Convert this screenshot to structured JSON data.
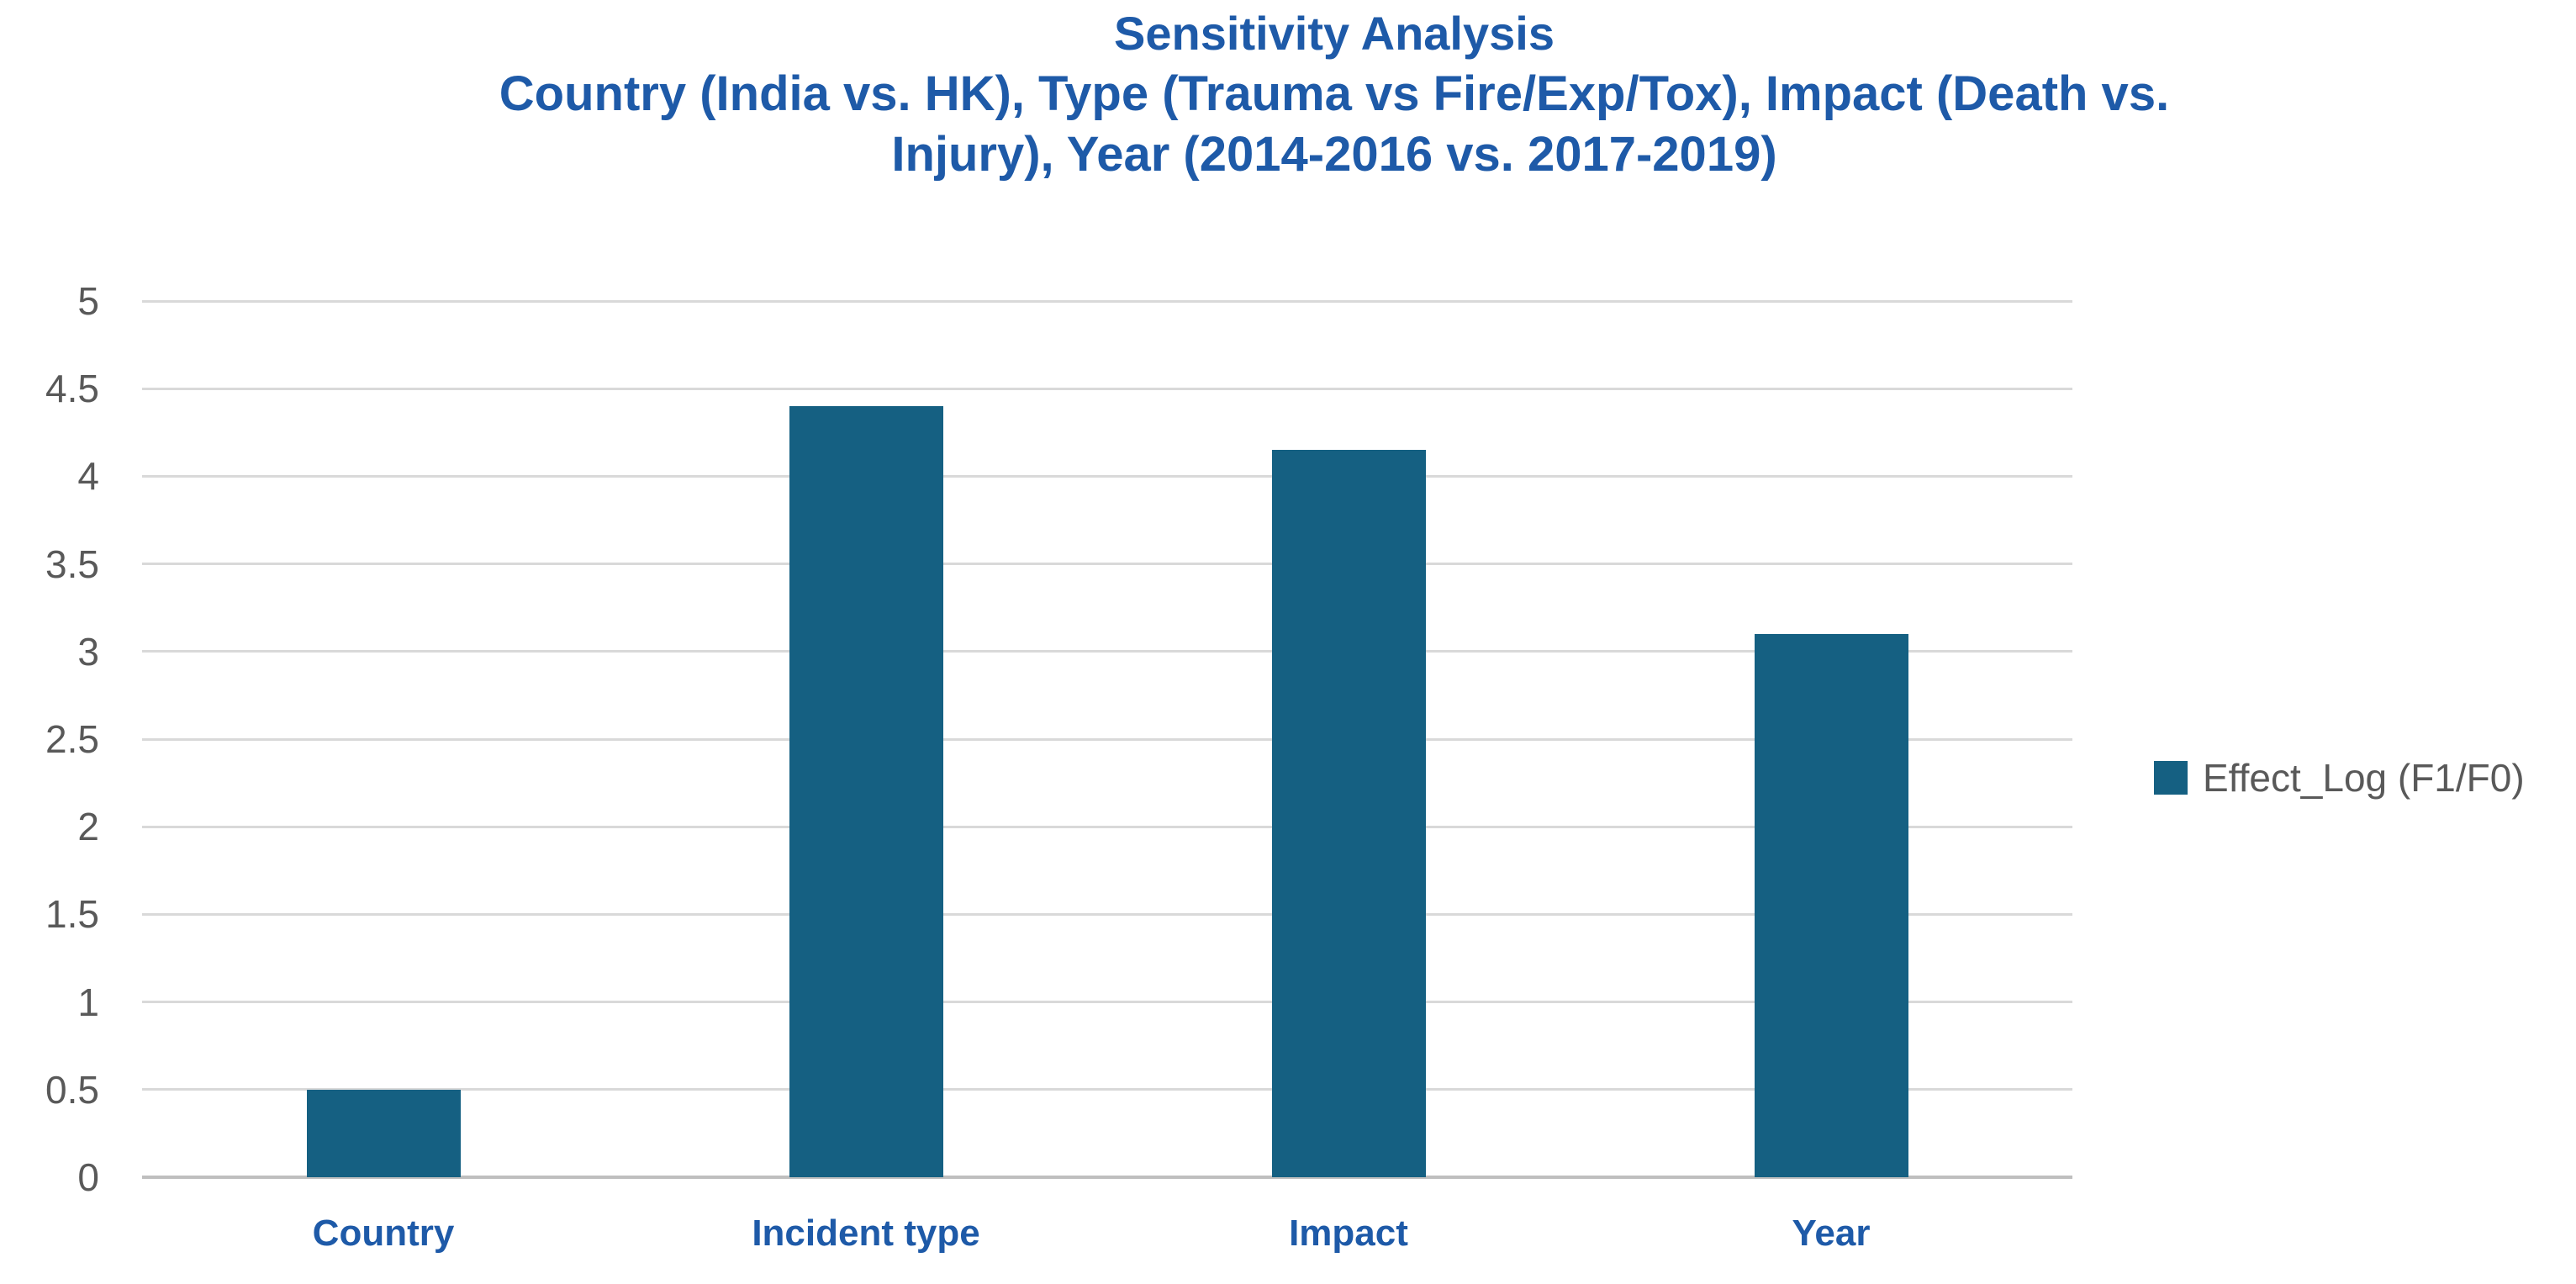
{
  "chart_data": {
    "type": "bar",
    "title": "Sensitivity Analysis",
    "subtitle_lines": [
      "Country (India vs. HK), Type (Trauma vs Fire/Exp/Tox), Impact (Death vs.",
      "Injury), Year (2014-2016 vs. 2017-2019)"
    ],
    "categories": [
      "Country",
      "Incident type",
      "Impact",
      "Year"
    ],
    "series": [
      {
        "name": "Effect_Log (F1/F0)",
        "values": [
          0.5,
          4.4,
          4.15,
          3.1
        ]
      }
    ],
    "xlabel": "",
    "ylabel": "",
    "ylim": [
      0,
      5
    ],
    "yticks": [
      0,
      0.5,
      1,
      1.5,
      2,
      2.5,
      3,
      3.5,
      4,
      4.5,
      5
    ],
    "grid": true,
    "legend_position": "middle-right",
    "colors": {
      "bar": "#156082",
      "title_text": "#1E5AA8",
      "category_text": "#1E5AA8",
      "tick_text": "#595959",
      "legend_text": "#595959",
      "gridline": "#D9D9D9",
      "axis_line": "#BFBFBF",
      "background": "#FFFFFF"
    }
  }
}
